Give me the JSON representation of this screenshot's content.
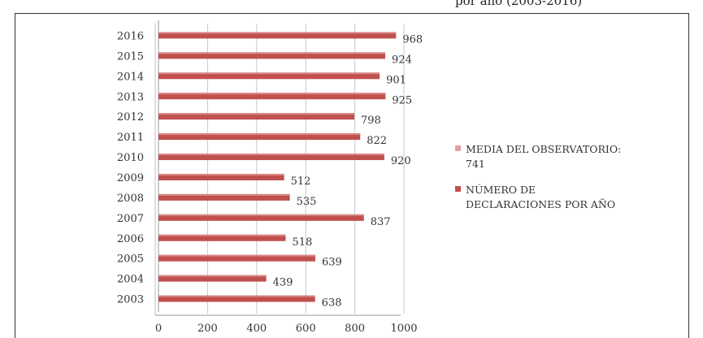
{
  "header_fragment": "por año (2003-2016)",
  "chart_data": {
    "type": "bar",
    "orientation": "horizontal",
    "categories": [
      "2016",
      "2015",
      "2014",
      "2013",
      "2012",
      "2011",
      "2010",
      "2009",
      "2008",
      "2007",
      "2006",
      "2005",
      "2004",
      "2003"
    ],
    "series": [
      {
        "name": "NÚMERO DE DECLARACIONES POR AÑO",
        "values": [
          968,
          924,
          901,
          925,
          798,
          822,
          920,
          512,
          535,
          837,
          518,
          639,
          439,
          638
        ],
        "color": "#c0504d"
      }
    ],
    "legend": [
      {
        "label": "MEDIA DEL OBSERVATORIO: 741",
        "color": "#e6a09f"
      },
      {
        "label": "NÚMERO DE DECLARACIONES POR AÑO",
        "color": "#c0504d"
      }
    ],
    "xlim": [
      0,
      1000
    ],
    "xticks": [
      "0",
      "200",
      "400",
      "600",
      "800",
      "1000"
    ],
    "grid": true,
    "legend_position": "right"
  }
}
